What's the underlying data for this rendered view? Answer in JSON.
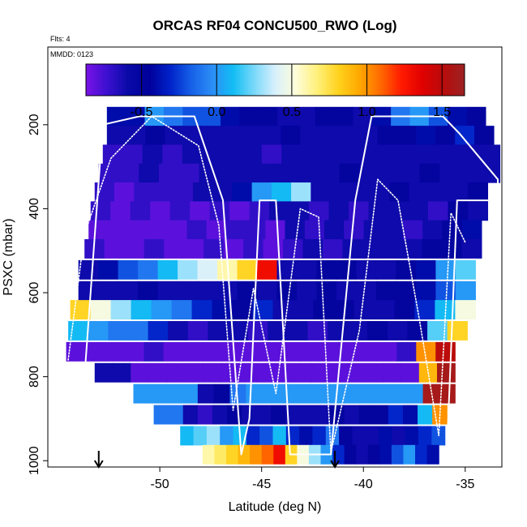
{
  "chart_data": {
    "type": "heatmap",
    "title": "ORCAS RF04 CONCU500_RWO (Log)",
    "note_flights": "Flts: 4",
    "note_date": "MMDD: 0123",
    "xlabel": "Latitude (deg N)",
    "ylabel": "PSXC (mbar)",
    "x_ticks": [
      -50,
      -45,
      -40,
      -35
    ],
    "x_tick_labels": [
      "-50",
      "-45",
      "-40",
      "-35"
    ],
    "y_ticks": [
      200,
      400,
      600,
      800,
      1000
    ],
    "y_tick_labels": [
      "200",
      "400",
      "600",
      "800",
      "1000"
    ],
    "xlim": [
      -55.5,
      -33.2
    ],
    "ylim": [
      1015,
      15
    ],
    "y_reversed": true,
    "grid": false,
    "colorbar": {
      "placement": "top-inside",
      "range": [
        -0.87,
        1.65
      ],
      "ticks": [
        -0.5,
        0.0,
        0.5,
        1.0,
        1.5
      ],
      "tick_labels": [
        "-0.5",
        "0.0",
        "0.5",
        "1.0",
        "1.5"
      ],
      "colors": [
        "#7a12e6",
        "#3c10d0",
        "#0a0aa8",
        "#00009a",
        "#0022c8",
        "#1660e8",
        "#2c8ef6",
        "#12bdf4",
        "#7ad8fa",
        "#d8f0fc",
        "#fefdd8",
        "#fff07a",
        "#ffd21e",
        "#ffa800",
        "#ff6a00",
        "#ff1a00",
        "#e00000",
        "#b80c0c",
        "#9c2222"
      ]
    },
    "z_units": "log10 CONCU500_RWO",
    "rows": [
      {
        "p": 180,
        "x0": -52.6,
        "x1": -34.0,
        "z": [
          -0.4,
          -0.4,
          0.0,
          -0.1,
          -0.2,
          -0.2,
          -0.4,
          -0.5,
          -0.5,
          -0.6,
          -0.6,
          -0.5,
          -0.5,
          -0.6,
          -0.4,
          -0.1,
          0.0,
          -0.2,
          -0.4,
          -0.5
        ]
      },
      {
        "p": 225,
        "x0": -52.6,
        "x1": -33.6,
        "z": [
          -0.6,
          -0.6,
          -0.5,
          -0.6,
          -0.6,
          -0.6,
          -0.6,
          -0.6,
          -0.6,
          -0.5,
          -0.6,
          -0.6,
          -0.6,
          -0.6,
          -0.5,
          -0.5,
          -0.4,
          -0.5,
          -0.3,
          -0.5
        ]
      },
      {
        "p": 270,
        "x0": -52.8,
        "x1": -33.3,
        "z": [
          -0.7,
          -0.7,
          -0.6,
          -0.7,
          -0.6,
          -0.6,
          -0.6,
          -0.6,
          -0.7,
          -0.6,
          -0.6,
          -0.6,
          -0.6,
          -0.6,
          -0.6,
          -0.6,
          -0.6,
          -0.6,
          -0.6,
          -0.6
        ]
      },
      {
        "p": 315,
        "x0": -53.0,
        "x1": -33.3,
        "z": [
          -0.7,
          -0.7,
          -0.6,
          -0.7,
          -0.7,
          -0.6,
          -0.6,
          -0.6,
          -0.6,
          -0.6,
          -0.6,
          -0.6,
          -0.5,
          -0.6,
          -0.6,
          -0.6,
          -0.5,
          -0.6,
          -0.6,
          -0.6
        ]
      },
      {
        "p": 360,
        "x0": -53.2,
        "x1": -33.9,
        "z": [
          -0.7,
          -0.8,
          -0.7,
          -0.7,
          -0.7,
          -0.6,
          -0.6,
          -0.4,
          0.0,
          0.1,
          0.3,
          -0.6,
          -0.6,
          -0.6,
          -0.6,
          -0.5,
          -0.6,
          -0.6,
          -0.6,
          -0.5
        ]
      },
      {
        "p": 405,
        "x0": -53.4,
        "x1": -33.9,
        "z": [
          -0.7,
          -0.8,
          -0.7,
          -0.8,
          -0.7,
          -0.8,
          -0.7,
          -0.8,
          -0.7,
          -0.6,
          -0.6,
          -0.7,
          -0.6,
          -0.7,
          -0.6,
          -0.6,
          -0.6,
          -0.7,
          -0.5,
          -0.6
        ]
      },
      {
        "p": 450,
        "x0": -53.5,
        "x1": -34.2,
        "z": [
          -0.8,
          -0.8,
          -0.8,
          -0.8,
          -0.8,
          -0.7,
          -0.8,
          -0.7,
          -0.7,
          -0.8,
          -0.6,
          -0.7,
          -0.6,
          -0.7,
          -0.6,
          -0.6,
          -0.7,
          -0.6,
          -0.5,
          -0.4
        ]
      },
      {
        "p": 495,
        "x0": -53.7,
        "x1": -34.2,
        "z": [
          -0.7,
          -0.8,
          -0.8,
          -0.7,
          -0.8,
          -0.8,
          -0.7,
          -0.8,
          -0.7,
          -0.8,
          -0.7,
          -0.6,
          -0.7,
          -0.6,
          -0.6,
          -0.6,
          -0.6,
          -0.5,
          -0.5,
          -0.6
        ]
      },
      {
        "p": 545,
        "x0": -54.0,
        "x1": -34.5,
        "z": [
          -0.6,
          -0.4,
          -0.2,
          -0.1,
          0.1,
          0.3,
          0.4,
          0.6,
          0.8,
          1.3,
          -0.6,
          -0.6,
          -0.5,
          -0.5,
          -0.6,
          -0.6,
          -0.5,
          -0.4,
          0.0,
          0.2
        ]
      },
      {
        "p": 595,
        "x0": -54.0,
        "x1": -34.5,
        "z": [
          -0.6,
          -0.6,
          -0.6,
          -0.5,
          -0.6,
          -0.6,
          -0.6,
          -0.6,
          -0.5,
          -0.6,
          -0.5,
          -0.6,
          -0.5,
          -0.6,
          -0.6,
          -0.5,
          -0.5,
          -0.4,
          -0.2,
          0.0
        ]
      },
      {
        "p": 640,
        "x0": -54.4,
        "x1": -34.5,
        "z": [
          0.8,
          0.5,
          0.3,
          0.1,
          0.0,
          -0.1,
          -0.3,
          -0.4,
          -0.5,
          -0.3,
          -0.6,
          -0.6,
          -0.5,
          -0.5,
          -0.6,
          -0.6,
          -0.5,
          -0.3,
          0.1,
          0.5
        ]
      },
      {
        "p": 690,
        "x0": -54.5,
        "x1": -34.9,
        "z": [
          0.1,
          0.0,
          -0.1,
          -0.1,
          -0.3,
          -0.6,
          -0.7,
          -0.6,
          -0.6,
          -0.7,
          -0.6,
          -0.6,
          -0.7,
          -0.6,
          -0.6,
          -0.5,
          -0.6,
          -0.5,
          0.2,
          0.8
        ]
      },
      {
        "p": 740,
        "x0": -54.6,
        "x1": -35.5,
        "z": [
          -0.8,
          -0.8,
          -0.8,
          -0.8,
          -0.7,
          -0.8,
          -0.8,
          -0.8,
          -0.8,
          -0.8,
          -0.8,
          -0.8,
          -0.8,
          -0.8,
          -0.8,
          -0.8,
          -0.8,
          -0.7,
          1.0,
          1.5
        ]
      },
      {
        "p": 790,
        "x0": -53.2,
        "x1": -35.5,
        "z": [
          -0.6,
          -0.6,
          -0.8,
          -0.8,
          -0.8,
          -0.8,
          -0.8,
          -0.8,
          -0.8,
          -0.8,
          -0.8,
          -0.8,
          -0.8,
          -0.8,
          -0.8,
          -0.8,
          -0.8,
          -0.8,
          0.9,
          1.6
        ]
      },
      {
        "p": 840,
        "x0": -51.3,
        "x1": -35.5,
        "z": [
          0.0,
          0.0,
          0.0,
          0.0,
          -0.6,
          -0.5,
          -0.1,
          0.0,
          0.0,
          0.0,
          0.0,
          0.0,
          0.0,
          0.0,
          0.0,
          0.0,
          0.0,
          0.0,
          1.6,
          1.6
        ]
      },
      {
        "p": 890,
        "x0": -50.3,
        "x1": -35.9,
        "z": [
          -0.1,
          -0.1,
          -0.6,
          -0.7,
          -0.6,
          -0.5,
          -0.6,
          -0.6,
          -0.5,
          -0.6,
          -0.6,
          -0.6,
          -0.5,
          -0.6,
          -0.5,
          -0.5,
          -0.3,
          -0.4,
          0.1,
          1.0
        ]
      },
      {
        "p": 940,
        "x0": -49.0,
        "x1": -36.0,
        "z": [
          0.1,
          0.2,
          0.3,
          0.0,
          0.1,
          -0.3,
          -0.2,
          0.1,
          -0.3,
          -0.4,
          -0.3,
          -0.1,
          -0.5,
          -0.6,
          -0.6,
          -0.4,
          -0.6,
          -0.4,
          -0.3,
          -0.2
        ]
      },
      {
        "p": 985,
        "x0": -47.9,
        "x1": -36.3,
        "z": [
          0.6,
          0.7,
          0.8,
          0.9,
          1.0,
          1.1,
          1.3,
          0.8,
          0.5,
          0.3,
          0.0,
          -0.3,
          -0.5,
          -0.6,
          -0.5,
          -0.4,
          -0.2,
          0.0,
          -0.3,
          -0.4
        ]
      }
    ],
    "flight_tracks": [
      {
        "style": "solid",
        "points": [
          [
            -54.0,
            1000
          ],
          [
            -52.8,
            200
          ],
          [
            -51.0,
            180
          ],
          [
            -48.3,
            180
          ],
          [
            -46.9,
            380
          ],
          [
            -46.0,
            985
          ],
          [
            -45.6,
            900
          ],
          [
            -45.1,
            380
          ],
          [
            -44.3,
            380
          ],
          [
            -43.6,
            985
          ],
          [
            -41.6,
            985
          ],
          [
            -40.4,
            380
          ],
          [
            -39.6,
            180
          ],
          [
            -36.1,
            180
          ],
          [
            -35.3,
            220
          ],
          [
            -33.4,
            330
          ],
          [
            -33.4,
            380
          ],
          [
            -35.4,
            380
          ],
          [
            -35.9,
            980
          ]
        ]
      },
      {
        "style": "dotted",
        "points": [
          [
            -54.5,
            760
          ],
          [
            -53.7,
            460
          ],
          [
            -52.4,
            280
          ],
          [
            -50.4,
            180
          ],
          [
            -48.1,
            250
          ],
          [
            -47.1,
            440
          ],
          [
            -46.4,
            880
          ],
          [
            -45.4,
            590
          ],
          [
            -44.3,
            840
          ],
          [
            -43.1,
            400
          ],
          [
            -42.2,
            420
          ],
          [
            -41.6,
            980
          ],
          [
            -40.2,
            690
          ],
          [
            -39.3,
            330
          ],
          [
            -38.3,
            380
          ],
          [
            -37.3,
            650
          ],
          [
            -36.3,
            940
          ],
          [
            -35.7,
            410
          ],
          [
            -35.0,
            480
          ]
        ]
      }
    ],
    "arrows": [
      {
        "x": -53.0,
        "direction": "down"
      },
      {
        "x": -41.4,
        "direction": "down"
      }
    ]
  }
}
